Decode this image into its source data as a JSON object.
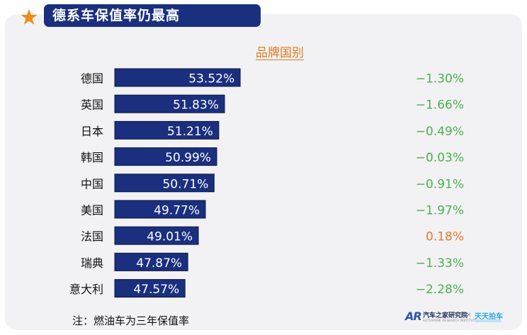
{
  "header": {
    "title": "德系车保值率仍最高",
    "star_color": "#f08a1c",
    "bar_color": "#1a2f7e"
  },
  "chart_data": {
    "type": "bar",
    "orientation": "horizontal",
    "category_header": "品牌国别",
    "categories": [
      "德国",
      "英国",
      "日本",
      "韩国",
      "中国",
      "美国",
      "法国",
      "瑞典",
      "意大利"
    ],
    "values": [
      53.52,
      51.83,
      51.21,
      50.99,
      50.71,
      49.77,
      49.01,
      47.87,
      47.57
    ],
    "value_labels": [
      "53.52%",
      "51.83%",
      "51.21%",
      "50.99%",
      "50.71%",
      "49.77%",
      "49.01%",
      "47.87%",
      "47.57%"
    ],
    "changes": [
      -1.3,
      -1.66,
      -0.49,
      -0.03,
      -0.91,
      -1.97,
      0.18,
      -1.33,
      -2.28
    ],
    "change_labels": [
      "−1.30%",
      "−1.66%",
      "−0.49%",
      "−0.03%",
      "−0.91%",
      "−1.97%",
      "0.18%",
      "−1.33%",
      "−2.28%"
    ],
    "xlim": [
      40,
      55
    ],
    "grid": false,
    "colors": {
      "bar": "#1a2f7e",
      "negative_change": "#4caf50",
      "positive_change": "#e8772a"
    }
  },
  "note": "注：燃油车为三年保值率",
  "logos": {
    "brand1_mark": "AR",
    "brand1_name": "汽车之家研究院",
    "brand1_sub": "AUTOHOME RESEARCH INSTITUTE",
    "separator": "×",
    "brand2_name": "天天拍车"
  }
}
